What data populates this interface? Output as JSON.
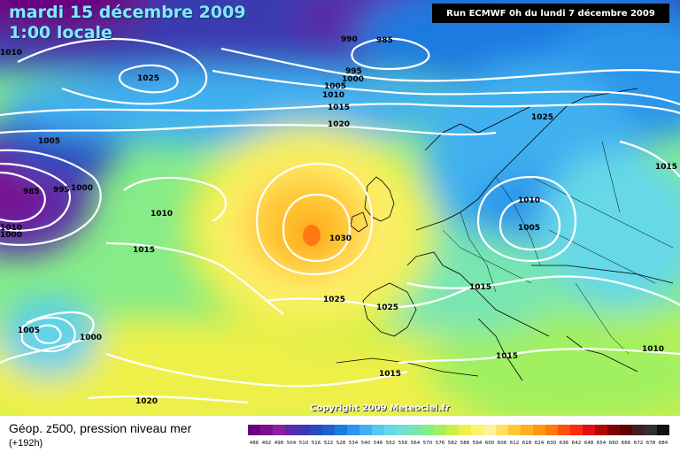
{
  "header": {
    "date": "mardi 15 décembre 2009",
    "hour": "1:00 locale",
    "run": "Run ECMWF 0h du lundi 7 décembre 2009"
  },
  "copyright": "Copyright 2009 Meteociel.fr",
  "legend": {
    "title": "Géop. z500, pression niveau mer",
    "subtitle": "(+192h)",
    "colors": [
      "#6a0080",
      "#7a1090",
      "#8a20a0",
      "#5a2aa8",
      "#3a3ab0",
      "#2a4ac0",
      "#1f5fd0",
      "#1f7ae0",
      "#2b95ea",
      "#3fb0f0",
      "#55c8f0",
      "#66d8e8",
      "#70e0d0",
      "#78e6b0",
      "#86ec88",
      "#a0f060",
      "#c8f048",
      "#eef048",
      "#fff070",
      "#fff0a0",
      "#ffe060",
      "#ffc830",
      "#ffb020",
      "#ff9810",
      "#ff7a10",
      "#ff5010",
      "#ff2a10",
      "#e01010",
      "#b00808",
      "#800000",
      "#600000",
      "#402020",
      "#303030",
      "#101010"
    ],
    "values": [
      "486",
      "492",
      "498",
      "504",
      "510",
      "516",
      "522",
      "528",
      "534",
      "540",
      "546",
      "552",
      "558",
      "564",
      "570",
      "576",
      "582",
      "588",
      "594",
      "600",
      "606",
      "612",
      "618",
      "624",
      "630",
      "636",
      "642",
      "648",
      "654",
      "660",
      "666",
      "672",
      "678",
      "684"
    ]
  },
  "isobars": [
    "990",
    "985",
    "995",
    "1000",
    "1005",
    "1010",
    "1015",
    "1020",
    "1025",
    "1025",
    "1005",
    "985",
    "995",
    "1000",
    "1010",
    "1015",
    "1030",
    "1025",
    "1025",
    "1015",
    "1010",
    "1005",
    "1015",
    "1015",
    "1010",
    "1015",
    "1005",
    "1000",
    "1020",
    "1010",
    "1000",
    "1010"
  ]
}
